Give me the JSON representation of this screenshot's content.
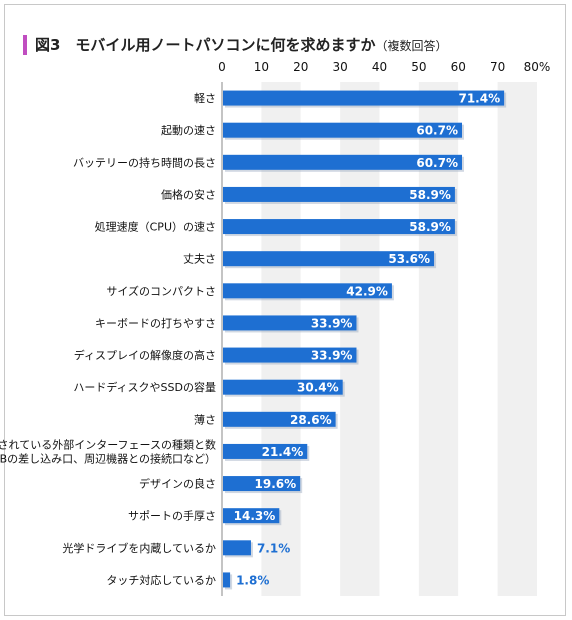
{
  "header": {
    "title": "図3　モバイル用ノートパソコンに何を求めますか",
    "subtitle": "（複数回答）"
  },
  "colors": {
    "bar": "#1e6fd2",
    "stripe": "#f0f0f0",
    "accent": "#c04ec0",
    "label_inside": "#ffffff",
    "label_outside": "#1e6fd2"
  },
  "chart_data": {
    "type": "bar",
    "orientation": "horizontal",
    "title": "図3　モバイル用ノートパソコンに何を求めますか（複数回答）",
    "xlim": [
      0,
      80
    ],
    "xticks": [
      "0",
      "10",
      "20",
      "30",
      "40",
      "50",
      "60",
      "70",
      "80%"
    ],
    "grid": "alternating vertical bands",
    "categories": [
      [
        "軽さ"
      ],
      [
        "起動の速さ"
      ],
      [
        "バッテリーの持ち時間の長さ"
      ],
      [
        "価格の安さ"
      ],
      [
        "処理速度（CPU）の速さ"
      ],
      [
        "丈夫さ"
      ],
      [
        "サイズのコンパクトさ"
      ],
      [
        "キーボードの打ちやすさ"
      ],
      [
        "ディスプレイの解像度の高さ"
      ],
      [
        "ハードディスクやSSDの容量"
      ],
      [
        "薄さ"
      ],
      [
        "搭載されている外部インターフェースの種類と数",
        "（USBの差し込み口、周辺機器との接続口など）"
      ],
      [
        "デザインの良さ"
      ],
      [
        "サポートの手厚さ"
      ],
      [
        "光学ドライブを内蔵しているか"
      ],
      [
        "タッチ対応しているか"
      ]
    ],
    "values": [
      71.4,
      60.7,
      60.7,
      58.9,
      58.9,
      53.6,
      42.9,
      33.9,
      33.9,
      30.4,
      28.6,
      21.4,
      19.6,
      14.3,
      7.1,
      1.8
    ],
    "value_labels": [
      "71.4%",
      "60.7%",
      "60.7%",
      "58.9%",
      "58.9%",
      "53.6%",
      "42.9%",
      "33.9%",
      "33.9%",
      "30.4%",
      "28.6%",
      "21.4%",
      "19.6%",
      "14.3%",
      "7.1%",
      "1.8%"
    ]
  }
}
